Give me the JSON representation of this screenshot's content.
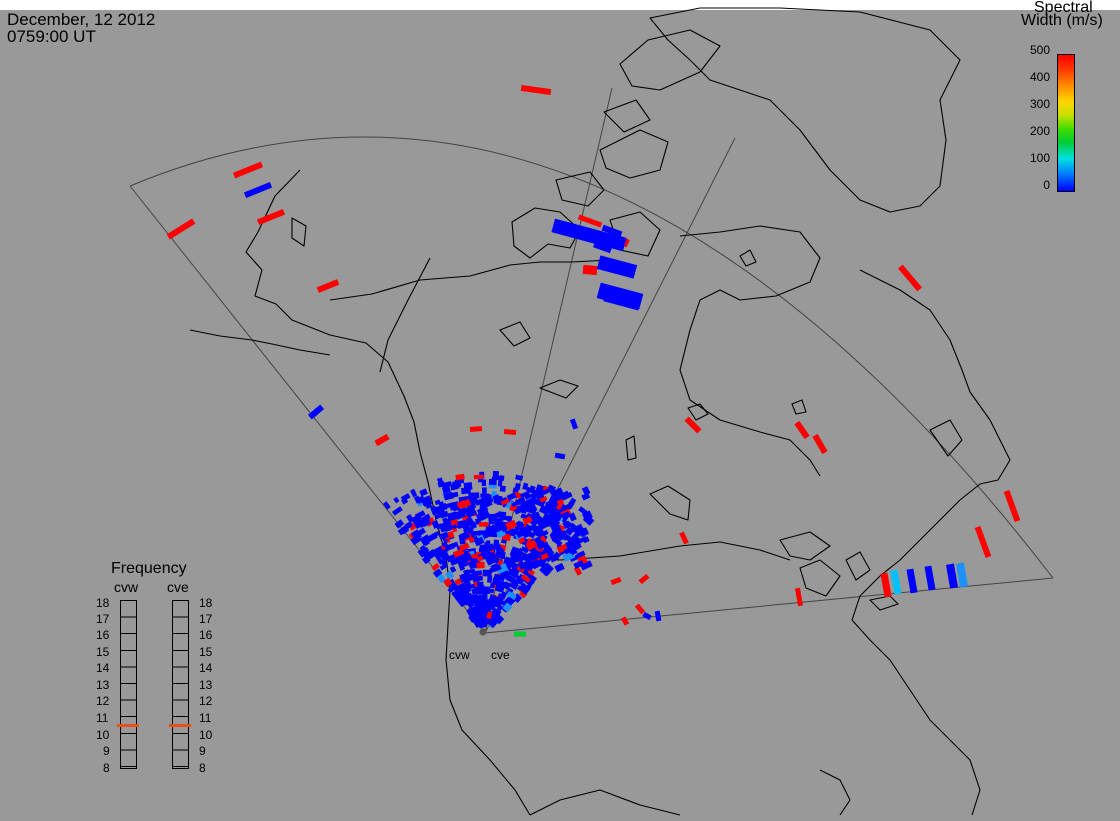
{
  "header": {
    "date": "December, 12 2012",
    "time": "0759:00 UT"
  },
  "colorbar": {
    "title_line1": "Spectral",
    "title_line2": "Width (m/s)",
    "ticks": [
      "500",
      "400",
      "300",
      "200",
      "100",
      "0"
    ],
    "min": 0,
    "max": 500,
    "colors": [
      "#0000ff",
      "#0077ff",
      "#00e0e0",
      "#00cc33",
      "#c8e000",
      "#ffd400",
      "#ff8800",
      "#ff0000"
    ]
  },
  "frequency_panel": {
    "title": "Frequency",
    "radars": [
      {
        "name": "cvw",
        "selected_mhz": 10.8
      },
      {
        "name": "cve",
        "selected_mhz": 10.8
      }
    ],
    "scale": [
      "18",
      "17",
      "16",
      "15",
      "14",
      "13",
      "12",
      "11",
      "10",
      "9",
      "8"
    ],
    "marker_color": "#e8501a"
  },
  "radar_sites": [
    {
      "name": "cvw"
    },
    {
      "name": "cve"
    }
  ],
  "map": {
    "background": "#999999",
    "coastline_color": "#000000",
    "fov_outline_color": "#444444"
  }
}
